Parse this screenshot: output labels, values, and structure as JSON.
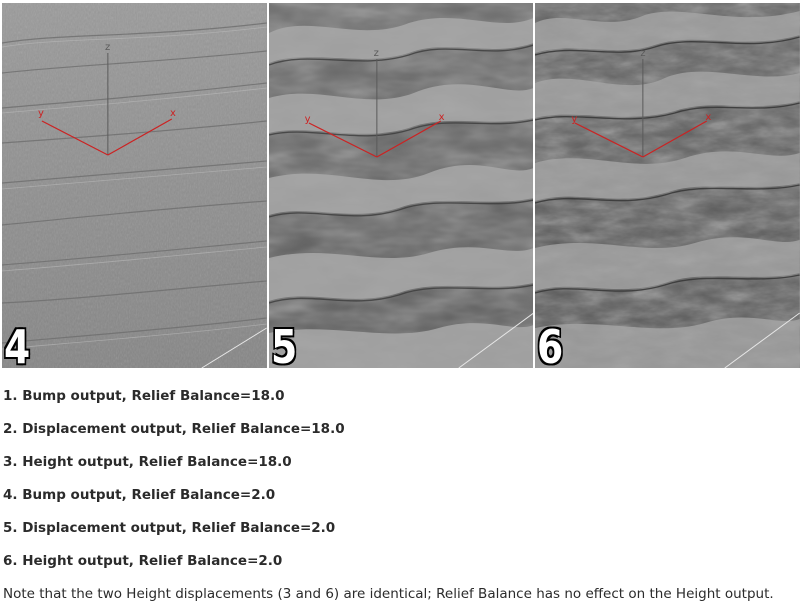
{
  "panels": [
    {
      "number": "4",
      "style": "bump",
      "axis_labels": {
        "x": "x",
        "y": "y",
        "z": "z"
      }
    },
    {
      "number": "5",
      "style": "displacement",
      "axis_labels": {
        "x": "x",
        "y": "y",
        "z": "z"
      }
    },
    {
      "number": "6",
      "style": "height",
      "axis_labels": {
        "x": "x",
        "y": "y",
        "z": "z"
      }
    }
  ],
  "captions": [
    "1. Bump output, Relief Balance=18.0",
    "2. Displacement output, Relief Balance=18.0",
    "3. Height output, Relief Balance=18.0",
    "4. Bump output, Relief Balance=2.0",
    "5. Displacement output, Relief Balance=2.0",
    "6. Height output, Relief Balance=2.0"
  ],
  "note": "Note that the two Height displacements (3 and 6) are identical; Relief Balance has no effect on the Height output.",
  "colors": {
    "axis": "#cc2222",
    "z_axis": "#5a5a5a",
    "surface_light": "#b4b4b4",
    "surface_dark": "#3e3e3e"
  }
}
